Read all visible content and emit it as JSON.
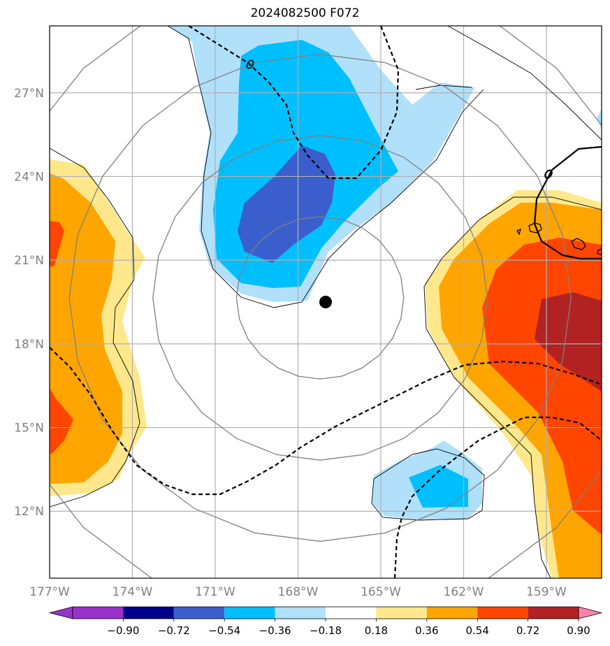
{
  "title": "2024082500 F072",
  "map": {
    "lon_range": [
      -177,
      -157
    ],
    "lat_range": [
      9.6,
      29.4
    ],
    "lon_ticks": [
      {
        "value": -177,
        "label": "177°W"
      },
      {
        "value": -174,
        "label": "174°W"
      },
      {
        "value": -171,
        "label": "171°W"
      },
      {
        "value": -168,
        "label": "168°W"
      },
      {
        "value": -165,
        "label": "165°W"
      },
      {
        "value": -162,
        "label": "162°W"
      },
      {
        "value": -159,
        "label": "159°W"
      }
    ],
    "lat_ticks": [
      {
        "value": 12,
        "label": "12°N"
      },
      {
        "value": 15,
        "label": "15°N"
      },
      {
        "value": 18,
        "label": "18°N"
      },
      {
        "value": 21,
        "label": "21°N"
      },
      {
        "value": 24,
        "label": "24°N"
      },
      {
        "value": 27,
        "label": "27°N"
      }
    ],
    "grid": true,
    "center_marker": {
      "lon": -167.2,
      "lat": 19.4
    },
    "range_rings_deg": [
      3,
      6,
      9,
      12
    ]
  },
  "colorbar": {
    "levels": [
      "−0.90",
      "−0.72",
      "−0.54",
      "−0.36",
      "−0.18",
      "0.18",
      "0.36",
      "0.54",
      "0.72",
      "0.90"
    ],
    "colors": [
      "#9932cc",
      "#00008b",
      "#3a5fcd",
      "#00bfff",
      "#b0e0fa",
      "#ffffff",
      "#ffe88c",
      "#ffa500",
      "#ff4500",
      "#b22222",
      "#ff82ab"
    ],
    "extend": "both"
  },
  "colors": {
    "grid": "#b0b0b0",
    "rings": "#808080",
    "contour": "#000000"
  }
}
